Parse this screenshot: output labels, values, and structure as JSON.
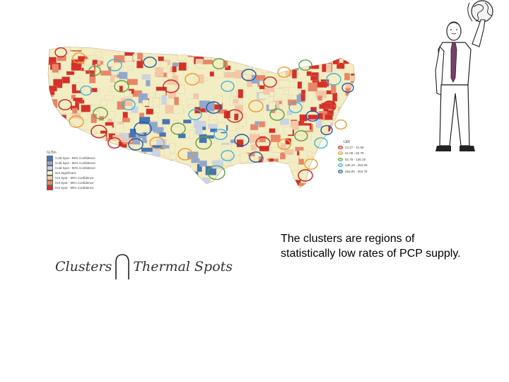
{
  "map": {
    "legend": {
      "title": "Gi Bin",
      "items": [
        {
          "label": "Cold Spot - 99% Confidence",
          "color": "#4575b4"
        },
        {
          "label": "Cold Spot - 95% Confidence",
          "color": "#91a7cf"
        },
        {
          "label": "Cold Spot - 90% Confidence",
          "color": "#c8d4e8"
        },
        {
          "label": "Not Significant",
          "color": "#f3edc4"
        },
        {
          "label": "Hot Spot - 90% Confidence",
          "color": "#f6c7a7"
        },
        {
          "label": "Hot Spot - 95% Confidence",
          "color": "#ea8566"
        },
        {
          "label": "Hot Spot - 99% Confidence",
          "color": "#d73027"
        }
      ]
    },
    "ring_legend": {
      "title": "LEK",
      "items": [
        {
          "label": "12.27 - 41.09",
          "color": "#d0201f"
        },
        {
          "label": "41.09 - 82.78",
          "color": "#f09a2a"
        },
        {
          "label": "82.78 - 136.19",
          "color": "#5ba33b"
        },
        {
          "label": "136.19 - 263.09",
          "color": "#3bb5e0"
        },
        {
          "label": "263.09 - 364.78",
          "color": "#1f5aa0"
        }
      ]
    }
  },
  "formula": {
    "left": "Clusters",
    "right": "Thermal Spots",
    "operator_icon": "intersection-symbol"
  },
  "caption": "The clusters are regions of statistically low rates of PCP supply."
}
